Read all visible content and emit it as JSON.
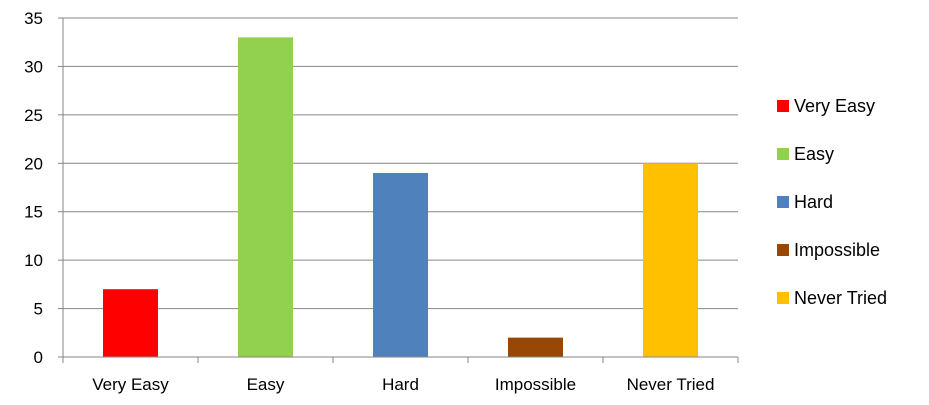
{
  "chart_data": {
    "type": "bar",
    "categories": [
      "Very Easy",
      "Easy",
      "Hard",
      "Impossible",
      "Never Tried"
    ],
    "values": [
      7,
      33,
      19,
      2,
      20
    ],
    "colors": [
      "#FF0000",
      "#92D050",
      "#4F81BD",
      "#974806",
      "#FFC000"
    ],
    "y_ticks": [
      "0",
      "5",
      "10",
      "15",
      "20",
      "25",
      "30",
      "35"
    ],
    "ylim": [
      0,
      35
    ],
    "grid": true,
    "legend_position": "right",
    "title": "",
    "xlabel": "",
    "ylabel": ""
  }
}
